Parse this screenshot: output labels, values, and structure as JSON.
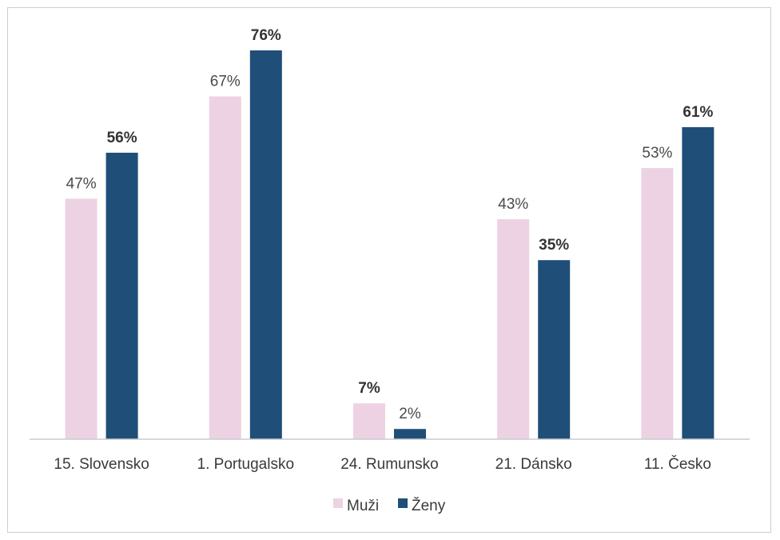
{
  "chart_data": {
    "type": "bar",
    "categories": [
      "15. Slovensko",
      "1. Portugalsko",
      "24. Rumunsko",
      "21. Dánsko",
      "11. Česko"
    ],
    "series": [
      {
        "name": "Muži",
        "color": "#ecd2e3",
        "values": [
          47,
          67,
          7,
          43,
          53
        ],
        "labels": [
          "47%",
          "67%",
          "7%",
          "43%",
          "53%"
        ],
        "bold": [
          false,
          false,
          true,
          false,
          false
        ]
      },
      {
        "name": "Ženy",
        "color": "#1f4e79",
        "values": [
          56,
          76,
          2,
          35,
          61
        ],
        "labels": [
          "56%",
          "76%",
          "2%",
          "35%",
          "61%"
        ],
        "bold": [
          true,
          true,
          false,
          true,
          true
        ]
      }
    ],
    "title": "",
    "xlabel": "",
    "ylabel": "",
    "ylim": [
      0,
      76
    ],
    "grid": false,
    "legend": "bottom"
  }
}
